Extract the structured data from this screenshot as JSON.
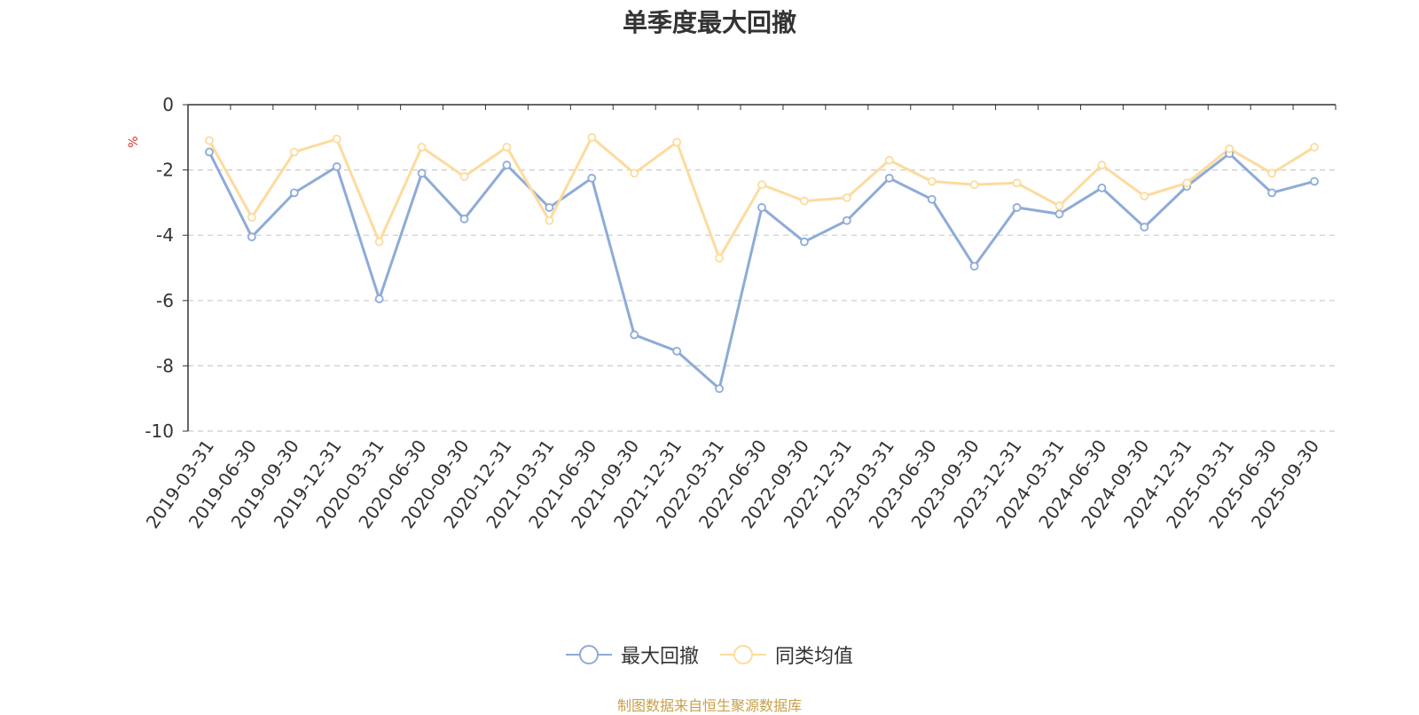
{
  "title": "单季度最大回撤",
  "source_note": "制图数据来自恒生聚源数据库",
  "chart_data": {
    "type": "line",
    "title": "单季度最大回撤",
    "ylabel": "%",
    "xlabel": "",
    "ylim": [
      -10,
      0
    ],
    "yticks": [
      0,
      -2,
      -4,
      -6,
      -8,
      -10
    ],
    "grid": true,
    "legend_position": "bottom-center",
    "categories": [
      "2019-03-31",
      "2019-06-30",
      "2019-09-30",
      "2019-12-31",
      "2020-03-31",
      "2020-06-30",
      "2020-09-30",
      "2020-12-31",
      "2021-03-31",
      "2021-06-30",
      "2021-09-30",
      "2021-12-31",
      "2022-03-31",
      "2022-06-30",
      "2022-09-30",
      "2022-12-31",
      "2023-03-31",
      "2023-06-30",
      "2023-09-30",
      "2023-12-31",
      "2024-03-31",
      "2024-06-30",
      "2024-09-30",
      "2024-12-31",
      "2025-03-31",
      "2025-06-30",
      "2025-09-30"
    ],
    "series": [
      {
        "name": "最大回撤",
        "color": "#8eabd8",
        "values": [
          -1.45,
          -4.05,
          -2.7,
          -1.9,
          -5.95,
          -2.1,
          -3.5,
          -1.85,
          -3.15,
          -2.25,
          -7.05,
          -7.55,
          -8.7,
          -3.15,
          -4.2,
          -3.55,
          -2.25,
          -2.9,
          -4.95,
          -3.15,
          -3.35,
          -2.55,
          -3.75,
          -2.5,
          -1.5,
          -2.7,
          -2.35
        ]
      },
      {
        "name": "同类均值",
        "color": "#fddb9c",
        "values": [
          -1.1,
          -3.45,
          -1.45,
          -1.05,
          -4.2,
          -1.3,
          -2.2,
          -1.3,
          -3.55,
          -1.0,
          -2.1,
          -1.15,
          -4.7,
          -2.45,
          -2.95,
          -2.85,
          -1.7,
          -2.35,
          -2.45,
          -2.4,
          -3.1,
          -1.85,
          -2.8,
          -2.4,
          -1.35,
          -2.1,
          -1.3
        ]
      }
    ]
  }
}
